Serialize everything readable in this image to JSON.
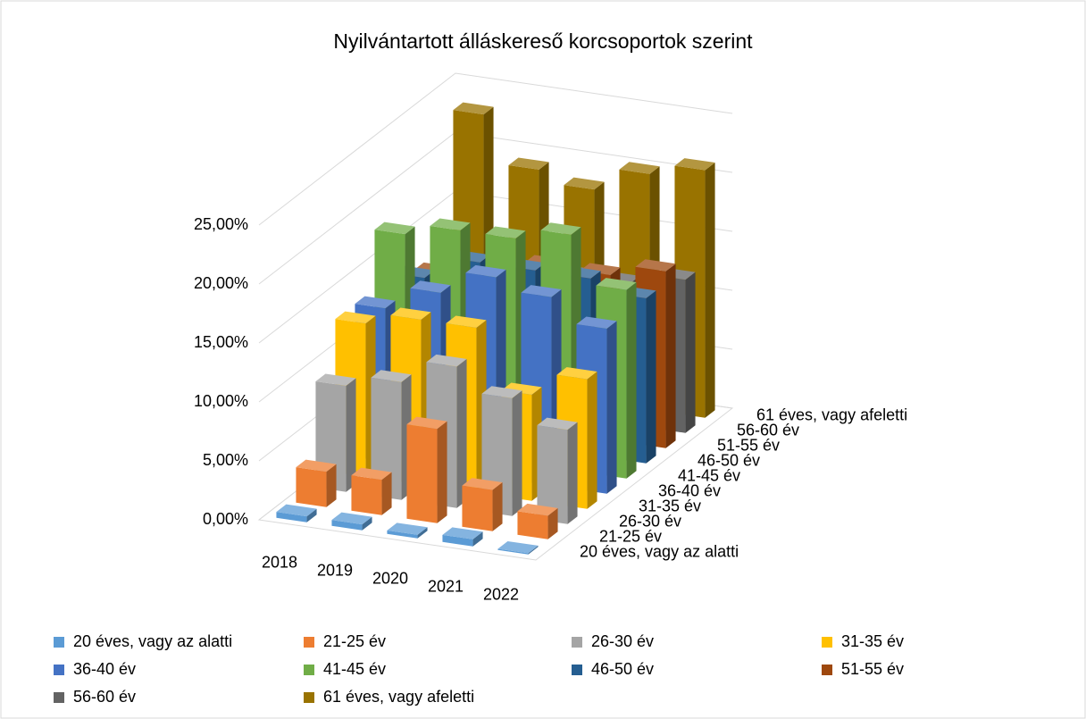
{
  "chart_data": {
    "type": "bar3d",
    "title": "Nyilvántartott álláskereső korcsoportok szerint",
    "categories": [
      "2018",
      "2019",
      "2020",
      "2021",
      "2022"
    ],
    "series": [
      {
        "name": "20 éves, vagy az alatti",
        "color": "#5b9bd5",
        "values": [
          0.5,
          0.5,
          0.3,
          0.6,
          0.1
        ]
      },
      {
        "name": "21-25 év",
        "color": "#ed7d31",
        "values": [
          3,
          3,
          8,
          3.5,
          2
        ]
      },
      {
        "name": "26-30 év",
        "color": "#a5a5a5",
        "values": [
          9,
          10,
          12,
          10,
          8
        ]
      },
      {
        "name": "31-35 év",
        "color": "#ffc000",
        "values": [
          13,
          14,
          14,
          9,
          11
        ]
      },
      {
        "name": "36-40 év",
        "color": "#4472c4",
        "values": [
          13,
          15,
          17,
          16,
          14
        ]
      },
      {
        "name": "41-45 év",
        "color": "#70ad47",
        "values": [
          18,
          19,
          19,
          20,
          16
        ]
      },
      {
        "name": "46-50 év",
        "color": "#255e91",
        "values": [
          13,
          15,
          15,
          15,
          14
        ]
      },
      {
        "name": "51-55 év",
        "color": "#9e480e",
        "values": [
          12,
          13,
          14,
          14,
          15
        ]
      },
      {
        "name": "56-60 év",
        "color": "#636363",
        "values": [
          10,
          11,
          12,
          12,
          13
        ]
      },
      {
        "name": "61 éves, vagy afeletti",
        "color": "#997300",
        "values": [
          23,
          19,
          18,
          20,
          21
        ]
      }
    ],
    "ylim": [
      0,
      25
    ],
    "yticks": [
      {
        "value": 0,
        "label": "0,00%"
      },
      {
        "value": 5,
        "label": "5,00%"
      },
      {
        "value": 10,
        "label": "10,00%"
      },
      {
        "value": 15,
        "label": "15,00%"
      },
      {
        "value": 20,
        "label": "20,00%"
      },
      {
        "value": 25,
        "label": "25,00%"
      }
    ],
    "grid": true,
    "legend": "bottom"
  }
}
